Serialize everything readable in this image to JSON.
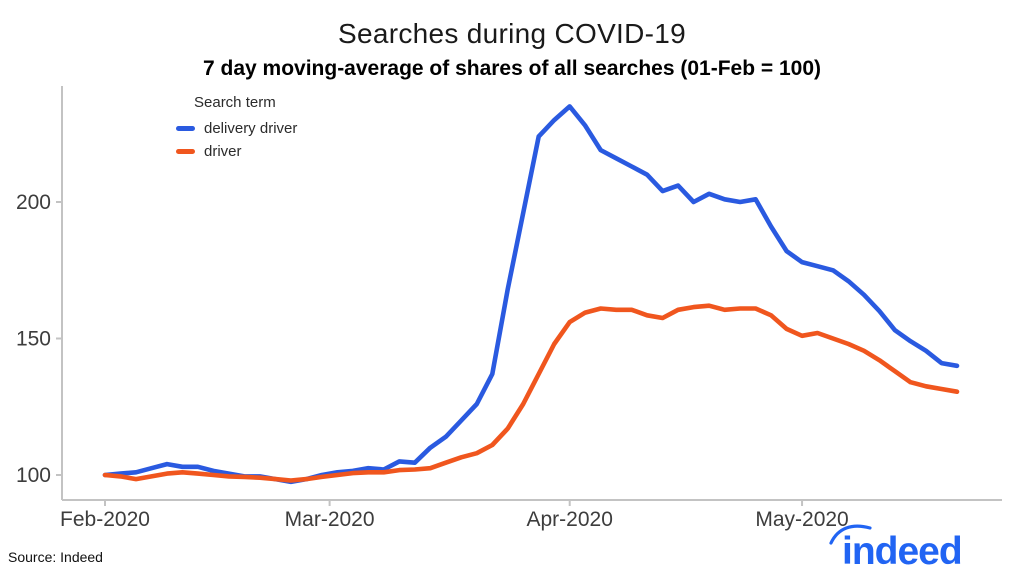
{
  "chart_data": {
    "type": "line",
    "title": "Searches during COVID-19",
    "subtitle": "7 day moving-average of shares of all searches (01-Feb = 100)",
    "legend_title": "Search term",
    "legend_position": "top-left-inside",
    "grid": false,
    "x_unit": "days since 01-Feb-2020",
    "x_days": [
      0,
      2,
      4,
      6,
      8,
      10,
      12,
      14,
      16,
      18,
      20,
      22,
      24,
      26,
      28,
      30,
      32,
      34,
      36,
      38,
      40,
      42,
      44,
      46,
      48,
      50,
      52,
      54,
      56,
      58,
      60,
      62,
      64,
      66,
      68,
      70,
      72,
      74,
      76,
      78,
      80,
      82,
      84,
      86,
      88,
      90,
      92,
      94,
      96,
      98,
      100,
      102,
      104,
      106,
      108,
      110
    ],
    "x_ticks": [
      {
        "day": 0,
        "label": "Feb-2020"
      },
      {
        "day": 29,
        "label": "Mar-2020"
      },
      {
        "day": 60,
        "label": "Apr-2020"
      },
      {
        "day": 90,
        "label": "May-2020"
      }
    ],
    "y_ticks": [
      100,
      150,
      200
    ],
    "ylim": [
      91,
      242
    ],
    "xlim_days": [
      -5.5,
      115.5
    ],
    "series": [
      {
        "name": "delivery driver",
        "color": "#2a5ae0",
        "values": [
          100,
          100.5,
          101,
          102.5,
          104,
          103,
          103,
          101.5,
          100.5,
          99.5,
          99.5,
          98.5,
          97.5,
          98.5,
          100,
          101,
          101.5,
          102.5,
          102,
          105,
          104.5,
          110,
          114,
          120,
          126,
          137,
          168,
          196,
          224,
          230,
          235,
          228,
          219,
          216,
          213,
          210,
          204,
          206,
          200,
          203,
          201,
          200,
          201,
          191,
          182,
          178,
          176.5,
          175,
          171,
          166,
          160,
          153,
          149,
          145.5,
          141,
          140
        ]
      },
      {
        "name": "driver",
        "color": "#f0561e",
        "values": [
          100,
          99.5,
          98.5,
          99.5,
          100.5,
          101,
          100.5,
          100,
          99.5,
          99.3,
          99,
          98.5,
          98,
          98.5,
          99.3,
          100,
          100.7,
          101,
          101,
          101.8,
          102,
          102.5,
          104.5,
          106.5,
          108,
          111,
          117,
          126,
          137,
          148,
          156,
          159.5,
          161,
          160.5,
          160.5,
          158.5,
          157.5,
          160.5,
          161.5,
          162,
          160.5,
          161,
          161,
          158.5,
          153.5,
          151,
          152,
          150,
          148,
          145.5,
          142,
          138,
          134,
          132.5,
          131.5,
          130.5
        ]
      }
    ],
    "peak_annotations": {
      "delivery_driver_peak": 235,
      "driver_peak": 162,
      "delivery_driver_end": 140,
      "driver_end": 130.5
    }
  },
  "axis_style": {
    "line_color": "#c3c3c3",
    "tick_label_color": "#3d3d3d"
  },
  "footer": {
    "source": "Source: Indeed",
    "logo_text": "indeed",
    "logo_color": "#2164f3"
  }
}
